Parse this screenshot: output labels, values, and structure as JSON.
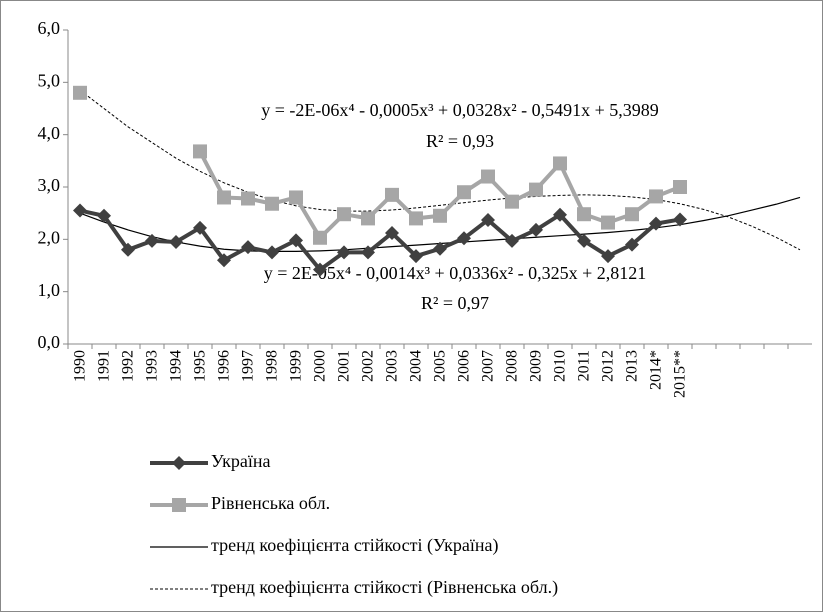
{
  "chart_data": {
    "type": "line",
    "categories": [
      "1990",
      "1991",
      "1992",
      "1993",
      "1994",
      "1995",
      "1996",
      "1997",
      "1998",
      "1999",
      "2000",
      "2001",
      "2002",
      "2003",
      "2004",
      "2005",
      "2006",
      "2007",
      "2008",
      "2009",
      "2010",
      "2011",
      "2012",
      "2013",
      "2014*",
      "2015**",
      null,
      null,
      null,
      null,
      null
    ],
    "ylim": [
      0,
      6
    ],
    "yticks": [
      {
        "value": 0,
        "label": "0,0"
      },
      {
        "value": 1,
        "label": "1,0"
      },
      {
        "value": 2,
        "label": "2,0"
      },
      {
        "value": 3,
        "label": "3,0"
      },
      {
        "value": 4,
        "label": "4,0"
      },
      {
        "value": 5,
        "label": "5,0"
      },
      {
        "value": 6,
        "label": "6,0"
      }
    ],
    "grid": false,
    "legend": "bottom",
    "annotations": [
      "y = -2E-06x⁴ - 0,0005x³ + 0,0328x² - 0,5491x + 5,3989",
      "R² = 0,93",
      "y = 2E-05x⁴ - 0,0014x³ + 0,0336x² - 0,325x + 2,8121",
      "R² = 0,97"
    ],
    "series": [
      {
        "name": "Україна",
        "color": "#404040",
        "marker": "diamond",
        "dash": false,
        "width": 4,
        "values": [
          2.55,
          2.45,
          1.8,
          1.97,
          1.95,
          2.22,
          1.6,
          1.85,
          1.75,
          1.98,
          1.42,
          1.75,
          1.75,
          2.12,
          1.68,
          1.82,
          2.02,
          2.37,
          1.97,
          2.18,
          2.47,
          1.97,
          1.68,
          1.9,
          2.3,
          2.38,
          null,
          null,
          null,
          null,
          null
        ]
      },
      {
        "name": "Рівненська обл.",
        "color": "#a6a6a6",
        "marker": "square",
        "dash": false,
        "width": 4,
        "values": [
          4.8,
          null,
          null,
          null,
          null,
          3.68,
          2.8,
          2.78,
          2.68,
          2.8,
          2.03,
          2.48,
          2.4,
          2.85,
          2.4,
          2.45,
          2.9,
          3.2,
          2.72,
          2.95,
          3.45,
          2.48,
          2.32,
          2.48,
          2.82,
          3.0,
          null,
          null,
          null,
          null,
          null
        ]
      },
      {
        "name": "тренд коефіцієнта стійкості (Україна)",
        "color": "#000000",
        "marker": "none",
        "dash": false,
        "width": 1.2,
        "values": [
          2.5,
          2.33,
          2.18,
          2.05,
          1.95,
          1.87,
          1.81,
          1.78,
          1.77,
          1.77,
          1.78,
          1.8,
          1.83,
          1.86,
          1.89,
          1.92,
          1.95,
          1.98,
          2.01,
          2.04,
          2.07,
          2.1,
          2.13,
          2.17,
          2.22,
          2.28,
          2.36,
          2.45,
          2.56,
          2.67,
          2.8
        ]
      },
      {
        "name": "тренд коефіцієнта стійкості (Рівненська обл.)",
        "color": "#000000",
        "marker": "none",
        "dash": true,
        "width": 1,
        "values": [
          4.85,
          4.5,
          4.15,
          3.85,
          3.55,
          3.3,
          3.08,
          2.9,
          2.75,
          2.64,
          2.57,
          2.54,
          2.54,
          2.56,
          2.6,
          2.65,
          2.7,
          2.75,
          2.79,
          2.82,
          2.84,
          2.85,
          2.84,
          2.81,
          2.76,
          2.68,
          2.57,
          2.43,
          2.25,
          2.04,
          1.8
        ]
      }
    ]
  }
}
